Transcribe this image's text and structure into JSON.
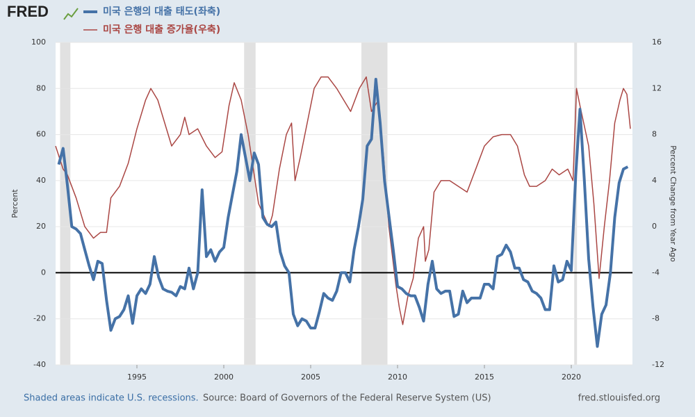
{
  "logo": "FRED",
  "chart_data": {
    "type": "line",
    "xlim": [
      1990.32,
      2023.52
    ],
    "xticks": [
      1995,
      2000,
      2005,
      2010,
      2015,
      2020
    ],
    "ylim": [
      -40,
      100
    ],
    "yticks": [
      -40,
      -20,
      0,
      20,
      40,
      60,
      80,
      100
    ],
    "y2lim": [
      -12,
      16
    ],
    "y2ticks": [
      -12,
      -8,
      -4,
      0,
      4,
      8,
      12,
      16
    ],
    "ylabel": "Percent",
    "y2label": "Percent Change from Year Ago",
    "grid": true,
    "recessions": [
      [
        1990.58,
        1991.17
      ],
      [
        2001.17,
        2001.83
      ],
      [
        2007.92,
        2009.42
      ],
      [
        2020.17,
        2020.33
      ]
    ],
    "series": [
      {
        "name": "미국 은행의 대출 태도(좌축)",
        "color": "#4572a7",
        "axis": "y",
        "x": [
          1990.5,
          1990.75,
          1991.0,
          1991.25,
          1991.5,
          1991.75,
          1992.0,
          1992.25,
          1992.5,
          1992.75,
          1993.0,
          1993.25,
          1993.5,
          1993.75,
          1994.0,
          1994.25,
          1994.5,
          1994.75,
          1995.0,
          1995.25,
          1995.5,
          1995.75,
          1996.0,
          1996.25,
          1996.5,
          1996.75,
          1997.0,
          1997.25,
          1997.5,
          1997.75,
          1998.0,
          1998.25,
          1998.5,
          1998.75,
          1999.0,
          1999.25,
          1999.5,
          1999.75,
          2000.0,
          2000.25,
          2000.5,
          2000.75,
          2001.0,
          2001.25,
          2001.5,
          2001.75,
          2002.0,
          2002.25,
          2002.5,
          2002.75,
          2003.0,
          2003.25,
          2003.5,
          2003.75,
          2004.0,
          2004.25,
          2004.5,
          2004.75,
          2005.0,
          2005.25,
          2005.5,
          2005.75,
          2006.0,
          2006.25,
          2006.5,
          2006.75,
          2007.0,
          2007.25,
          2007.5,
          2007.75,
          2008.0,
          2008.25,
          2008.5,
          2008.75,
          2009.0,
          2009.25,
          2009.5,
          2009.75,
          2010.0,
          2010.25,
          2010.5,
          2010.75,
          2011.0,
          2011.25,
          2011.5,
          2011.75,
          2012.0,
          2012.25,
          2012.5,
          2012.75,
          2013.0,
          2013.25,
          2013.5,
          2013.75,
          2014.0,
          2014.25,
          2014.5,
          2014.75,
          2015.0,
          2015.25,
          2015.5,
          2015.75,
          2016.0,
          2016.25,
          2016.5,
          2016.75,
          2017.0,
          2017.25,
          2017.5,
          2017.75,
          2018.0,
          2018.25,
          2018.5,
          2018.75,
          2019.0,
          2019.25,
          2019.5,
          2019.75,
          2020.0,
          2020.25,
          2020.5,
          2020.75,
          2021.0,
          2021.25,
          2021.5,
          2021.75,
          2022.0,
          2022.25,
          2022.5,
          2022.75,
          2023.0,
          2023.25
        ],
        "values": [
          47,
          54,
          38,
          20,
          19,
          17,
          10,
          3,
          -3,
          5,
          4,
          -12,
          -25,
          -20,
          -19,
          -16,
          -10,
          -22,
          -10,
          -7,
          -9,
          -5,
          7,
          -2,
          -7,
          -8,
          -8.5,
          -10,
          -6,
          -7,
          2,
          -7,
          0,
          36,
          7,
          10,
          5,
          9,
          11,
          24,
          34,
          44,
          60,
          50,
          40,
          52,
          47,
          24,
          21,
          20,
          22,
          9,
          3,
          0,
          -18,
          -23,
          -20,
          -21,
          -24,
          -24,
          -17,
          -9,
          -11,
          -12,
          -8,
          0,
          0,
          -4,
          10,
          20,
          32,
          55,
          58,
          84,
          65,
          40,
          25,
          10,
          -6,
          -7,
          -9,
          -10,
          -10,
          -15,
          -21,
          -5,
          5,
          -7,
          -9,
          -8,
          -8,
          -19,
          -18,
          -8,
          -13,
          -11,
          -11,
          -11,
          -5,
          -5,
          -7,
          7,
          8,
          12,
          9,
          2,
          2,
          -3,
          -4,
          -8,
          -9,
          -11,
          -16,
          -16,
          3,
          -4,
          -3,
          5,
          1,
          42,
          71,
          40,
          6,
          -15,
          -32,
          -18,
          -14,
          0,
          24,
          39,
          45,
          46
        ]
      },
      {
        "name": "미국 은행 대출 증가율(우축)",
        "color": "#aa4643",
        "axis": "y2",
        "x": [
          1990.32,
          1990.75,
          1991.0,
          1991.5,
          1992.0,
          1992.5,
          1992.9,
          1993.25,
          1993.5,
          1994.0,
          1994.5,
          1995.0,
          1995.5,
          1995.8,
          1996.2,
          1996.6,
          1997.0,
          1997.5,
          1997.75,
          1998.0,
          1998.5,
          1999.0,
          1999.5,
          1999.9,
          2000.3,
          2000.6,
          2001.0,
          2001.4,
          2001.8,
          2002.0,
          2002.6,
          2002.8,
          2003.2,
          2003.6,
          2003.9,
          2004.1,
          2004.4,
          2004.8,
          2005.2,
          2005.6,
          2006.0,
          2006.5,
          2006.9,
          2007.3,
          2007.8,
          2008.2,
          2008.5,
          2008.9,
          2009.2,
          2009.5,
          2009.9,
          2010.1,
          2010.3,
          2010.6,
          2010.9,
          2011.2,
          2011.5,
          2011.6,
          2011.8,
          2012.1,
          2012.5,
          2013.0,
          2013.5,
          2014.0,
          2014.5,
          2015.0,
          2015.5,
          2016.0,
          2016.5,
          2016.9,
          2017.3,
          2017.6,
          2018.0,
          2018.5,
          2018.9,
          2019.3,
          2019.8,
          2020.1,
          2020.3,
          2020.5,
          2021.0,
          2021.3,
          2021.6,
          2021.9,
          2022.2,
          2022.5,
          2022.8,
          2023.0,
          2023.2,
          2023.4
        ],
        "values": [
          7,
          5,
          4.5,
          2.5,
          0,
          -1,
          -0.5,
          -0.5,
          2.5,
          3.5,
          5.5,
          8.5,
          11,
          12,
          11,
          9,
          7,
          8,
          9.5,
          8,
          8.5,
          7,
          6,
          6.5,
          10.5,
          12.5,
          11,
          8,
          4,
          2,
          0,
          1,
          5,
          8,
          9,
          4,
          6,
          9,
          12,
          13,
          13,
          12,
          11,
          10,
          12,
          13,
          10,
          11,
          6,
          0,
          -5,
          -7,
          -8.5,
          -6,
          -4.5,
          -1,
          0,
          -3,
          -2,
          3,
          4,
          4,
          3.5,
          3,
          5,
          7,
          7.8,
          8,
          8,
          7,
          4.5,
          3.5,
          3.5,
          4,
          5,
          4.5,
          5,
          4,
          12,
          10.5,
          7,
          2,
          -4.5,
          0,
          4,
          9,
          11,
          12,
          11.5,
          8.5
        ]
      }
    ]
  },
  "footer": {
    "left": "Shaded areas indicate U.S. recessions.",
    "source": "Source: Board of Governors of the Federal Reserve System (US)",
    "right": "fred.stlouisfed.org"
  }
}
